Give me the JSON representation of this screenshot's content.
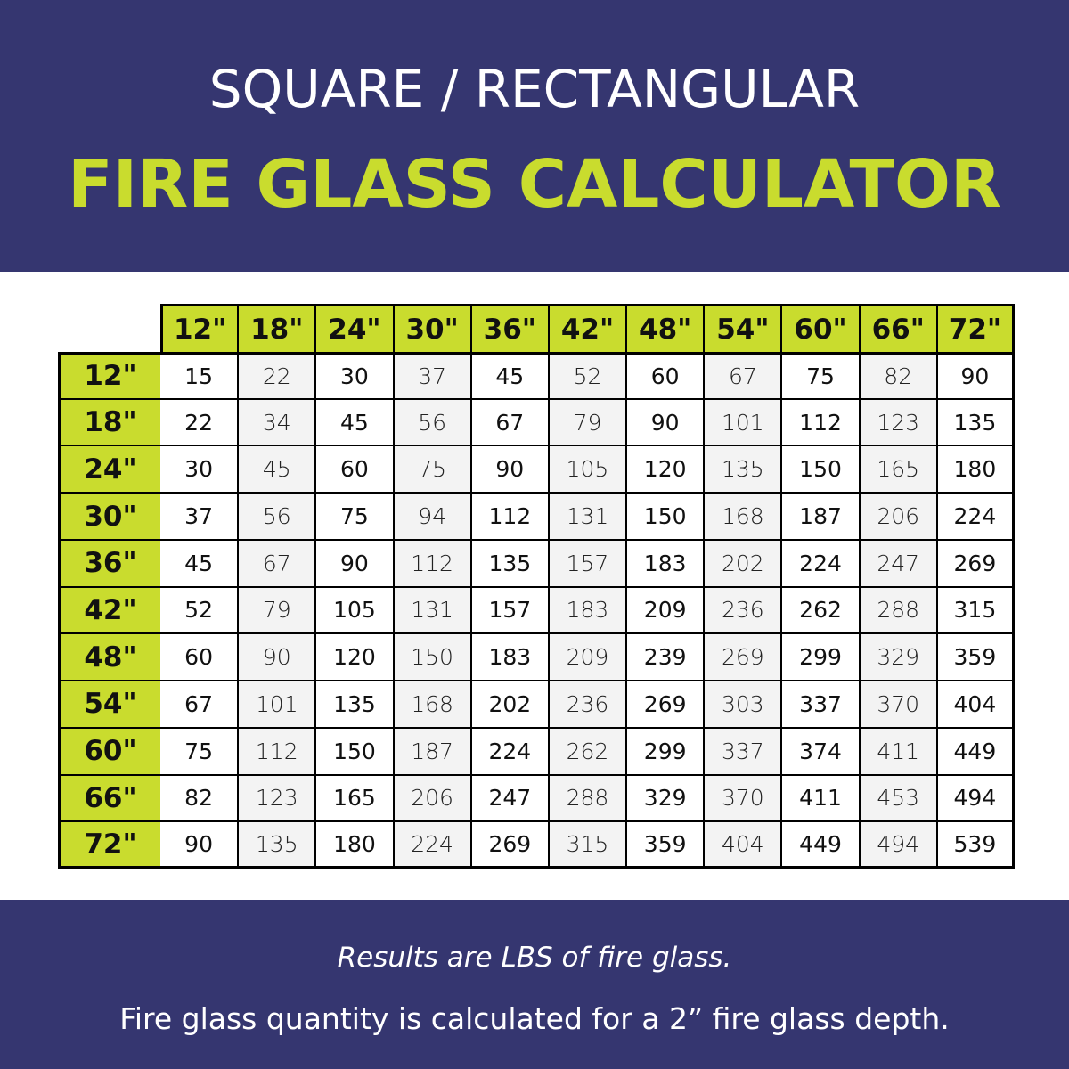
{
  "header": {
    "line1": "SQUARE / RECTANGULAR",
    "line2": "FIRE GLASS CALCULATOR"
  },
  "footer": {
    "note": "Results are LBS of fire glass.",
    "depth_note": "Fire glass quantity is calculated for a 2” fire glass depth."
  },
  "colors": {
    "navy": "#353670",
    "lime": "#c9dc2e",
    "cell_alt": "#f3f3f3"
  },
  "chart_data": {
    "type": "table",
    "columns": [
      "12\"",
      "18\"",
      "24\"",
      "30\"",
      "36\"",
      "42\"",
      "48\"",
      "54\"",
      "60\"",
      "66\"",
      "72\""
    ],
    "rows": [
      "12\"",
      "18\"",
      "24\"",
      "30\"",
      "36\"",
      "42\"",
      "48\"",
      "54\"",
      "60\"",
      "66\"",
      "72\""
    ],
    "values": [
      [
        15,
        22,
        30,
        37,
        45,
        52,
        60,
        67,
        75,
        82,
        90
      ],
      [
        22,
        34,
        45,
        56,
        67,
        79,
        90,
        101,
        112,
        123,
        135
      ],
      [
        30,
        45,
        60,
        75,
        90,
        105,
        120,
        135,
        150,
        165,
        180
      ],
      [
        37,
        56,
        75,
        94,
        112,
        131,
        150,
        168,
        187,
        206,
        224
      ],
      [
        45,
        67,
        90,
        112,
        135,
        157,
        183,
        202,
        224,
        247,
        269
      ],
      [
        52,
        79,
        105,
        131,
        157,
        183,
        209,
        236,
        262,
        288,
        315
      ],
      [
        60,
        90,
        120,
        150,
        183,
        209,
        239,
        269,
        299,
        329,
        359
      ],
      [
        67,
        101,
        135,
        168,
        202,
        236,
        269,
        303,
        337,
        370,
        404
      ],
      [
        75,
        112,
        150,
        187,
        224,
        262,
        299,
        337,
        374,
        411,
        449
      ],
      [
        82,
        123,
        165,
        206,
        247,
        288,
        329,
        370,
        411,
        453,
        494
      ],
      [
        90,
        135,
        180,
        224,
        269,
        315,
        359,
        404,
        449,
        494,
        539
      ]
    ]
  }
}
